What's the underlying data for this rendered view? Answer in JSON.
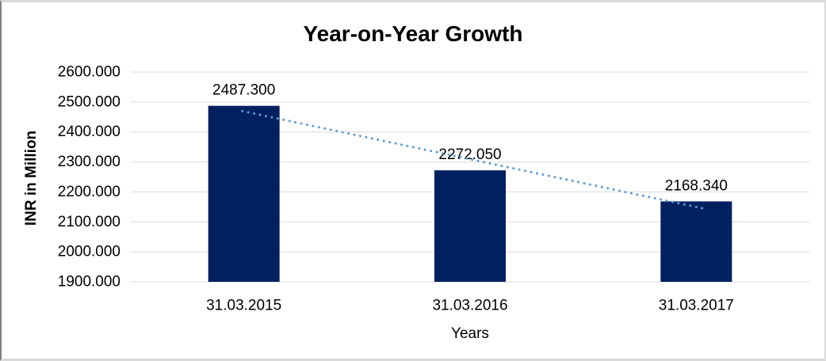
{
  "chart_data": {
    "type": "bar",
    "title": "Year-on-Year Growth",
    "xlabel": "Years",
    "ylabel": "INR in Million",
    "categories": [
      "31.03.2015",
      "31.03.2016",
      "31.03.2017"
    ],
    "values": [
      2487.3,
      2272.05,
      2168.34
    ],
    "bar_labels": [
      "2487.300",
      "2272.050",
      "2168.340"
    ],
    "ylim": [
      1900,
      2600
    ],
    "ytick_step": 100,
    "ytick_labels": [
      "1900.000",
      "2000.000",
      "2100.000",
      "2200.000",
      "2300.000",
      "2400.000",
      "2500.000",
      "2600.000"
    ],
    "grid": true,
    "legend_position": "none",
    "bar_color": "#002060",
    "gridline_color": "#d9d9d9",
    "trendline": {
      "type": "linear",
      "style": "dotted",
      "color": "#5b9bd5"
    }
  }
}
